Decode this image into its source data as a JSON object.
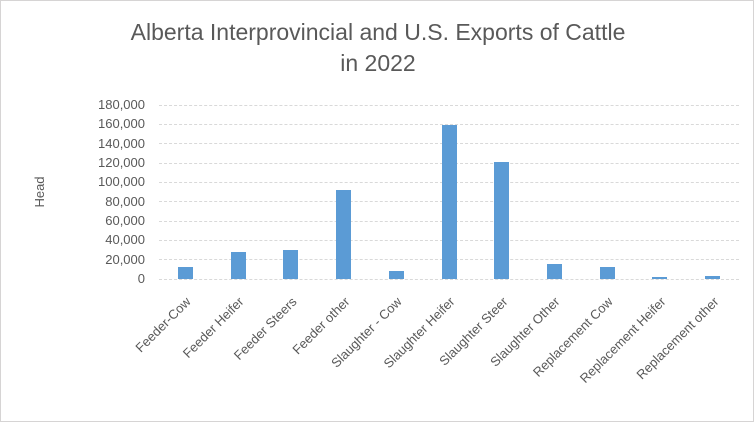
{
  "chart_data": {
    "type": "bar",
    "title": "Alberta Interprovincial and U.S. Exports of Cattle in 2022",
    "title_lines": [
      "Alberta Interprovincial and U.S. Exports of Cattle",
      "in 2022"
    ],
    "ylabel": "Head",
    "xlabel": "",
    "categories": [
      "Feeder-Cow",
      "Feeder Heifer",
      "Feeder Steers",
      "Feeder other",
      "Slaughter - Cow",
      "Slaughter Heifer",
      "Slaughter Steer",
      "Slaughter Other",
      "Replacement Cow",
      "Replacement Heifer",
      "Replacement other"
    ],
    "values": [
      12000,
      28000,
      30000,
      92000,
      8000,
      159000,
      121000,
      16000,
      12000,
      2000,
      3000
    ],
    "ylim": [
      0,
      180000
    ],
    "ytick_step": 20000,
    "ytick_labels": [
      "0",
      "20,000",
      "40,000",
      "60,000",
      "80,000",
      "100,000",
      "120,000",
      "140,000",
      "160,000",
      "180,000"
    ],
    "grid": true,
    "legend": false,
    "colors": {
      "bar": "#5b9bd5",
      "gridline": "#d9d9d9",
      "text": "#595959",
      "frame_border": "#d6d4d4",
      "background": "#ffffff"
    }
  }
}
